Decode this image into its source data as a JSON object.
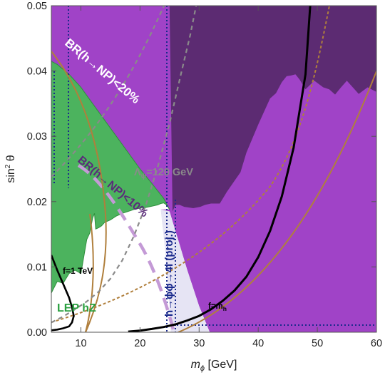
{
  "chart_data": {
    "type": "area",
    "xlabel_main": "m",
    "xlabel_sub": "ϕ",
    "xlabel_unit": " [GeV]",
    "ylabel_main": "sin",
    "ylabel_sup": "2",
    "ylabel_theta": " θ",
    "xlim": [
      5,
      60
    ],
    "ylim": [
      0,
      0.05
    ],
    "x_ticks": [
      10,
      20,
      30,
      40,
      50,
      60
    ],
    "x_tick_labels": [
      "10",
      "20",
      "30",
      "40",
      "50",
      "60"
    ],
    "y_ticks": [
      0.0,
      0.01,
      0.02,
      0.03,
      0.04,
      0.05
    ],
    "y_tick_labels": [
      "0.00",
      "0.01",
      "0.02",
      "0.03",
      "0.04",
      "0.05"
    ],
    "grid": false,
    "colors": {
      "br20_region": "#5c2b72",
      "purple_region": "#a043c7",
      "lep_green": "#4cb35e",
      "projection": "#e6e4f4",
      "dotted_blue": "#1a2a8c",
      "brown_curve": "#b07f3c",
      "gray_dashed": "#8a8a8a",
      "lavender_dashed": "#c49ad6",
      "black_curve": "#000000"
    },
    "regions": [
      {
        "name": "BR(h→NP)<20%",
        "boundary_x": [
          5,
          25,
          25.5,
          26,
          26.7,
          27.5,
          29,
          30.2,
          31,
          32,
          33.5,
          34.7,
          36,
          37,
          38,
          40,
          41,
          42,
          43,
          44,
          44.8,
          45.5,
          46.3,
          47,
          48,
          49.5,
          51,
          52,
          53,
          54,
          55,
          57,
          58.5,
          60
        ],
        "boundary_y": [
          0.05,
          0.05,
          0.0185,
          0.0195,
          0.0195,
          0.0192,
          0.019,
          0.0192,
          0.0195,
          0.0197,
          0.0197,
          0.0215,
          0.0232,
          0.0245,
          0.0275,
          0.0318,
          0.0338,
          0.0358,
          0.0366,
          0.0383,
          0.0392,
          0.0393,
          0.0395,
          0.0387,
          0.0372,
          0.0385,
          0.0375,
          0.0372,
          0.0364,
          0.0375,
          0.0385,
          0.0365,
          0.0375,
          0.0368
        ]
      },
      {
        "name": "LEP hZ",
        "boundary_x": [
          5,
          6,
          7,
          8,
          9,
          10,
          11,
          11.5,
          12,
          12.3,
          12.5,
          13,
          13.5,
          14,
          15,
          16,
          17,
          18,
          19,
          20,
          21,
          22,
          23,
          23.5,
          24,
          24.5,
          25
        ],
        "boundary_y": [
          0.006,
          0.0078,
          0.0075,
          0.009,
          0.0095,
          0.009,
          0.0142,
          0.0152,
          0.0175,
          0.0182,
          0.0158,
          0.016,
          0.0163,
          0.0168,
          0.0172,
          0.0178,
          0.0182,
          0.0185,
          0.0188,
          0.019,
          0.0191,
          0.0193,
          0.0195,
          0.0197,
          0.0198,
          0.0195,
          0.0188
        ]
      },
      {
        "name": "h→ϕϕ→4l (proj.)",
        "boundary_x": [
          23.5,
          25,
          26.5,
          28,
          30,
          31.8
        ],
        "boundary_y": [
          0.0188,
          0.0185,
          0.014,
          0.0095,
          0.004,
          0.0
        ]
      }
    ],
    "curves": [
      {
        "name": "f=1 TeV",
        "x": [
          5,
          6,
          7,
          8,
          8.5,
          8.8,
          8.5,
          8,
          7,
          6,
          5
        ],
        "y": [
          0.0118,
          0.0095,
          0.0074,
          0.0053,
          0.0038,
          0.0025,
          0.0015,
          0.0009,
          0.0006,
          0.0004,
          0.0003
        ]
      },
      {
        "name": "f=m_h",
        "x": [
          18,
          20,
          22,
          24,
          26,
          28,
          30,
          32,
          34,
          36,
          38,
          40,
          42,
          44,
          46,
          48,
          48.8
        ],
        "y": [
          0.0001,
          0.00025,
          0.0005,
          0.0008,
          0.0012,
          0.0018,
          0.0025,
          0.0035,
          0.0048,
          0.0064,
          0.0085,
          0.0115,
          0.0155,
          0.0208,
          0.0283,
          0.0395,
          0.05
        ]
      },
      {
        "name": "Λ_ψ=120 GeV",
        "x": [
          5,
          7,
          9,
          11,
          13,
          15,
          17,
          19,
          21,
          23,
          25,
          27,
          28.5,
          29.5
        ],
        "y": [
          0.0015,
          0.0024,
          0.0035,
          0.0047,
          0.0062,
          0.0082,
          0.011,
          0.0148,
          0.0195,
          0.0253,
          0.032,
          0.0398,
          0.0455,
          0.05
        ]
      }
    ],
    "annotations": [
      "BR(h→NP)<20%",
      "BR(h→NP)<10%",
      "Λ_ψ=120 GeV",
      "h→ϕϕ→4l (proj.)",
      "f=1 TeV",
      "LEP hZ",
      "f=m_h"
    ]
  },
  "labels": {
    "br20": "BR(h→NP)<20%",
    "br10": "BR(h→NP)<10%",
    "lambda_main": "Λ",
    "lambda_sub": "ψ",
    "lambda_rest": "=120 GeV",
    "h4l": "h→ϕϕ→4l (proj.)",
    "f1tev": "f=1 TeV",
    "lep": "LEP hZ",
    "fmh_main": "f=m",
    "fmh_sub": "h"
  }
}
